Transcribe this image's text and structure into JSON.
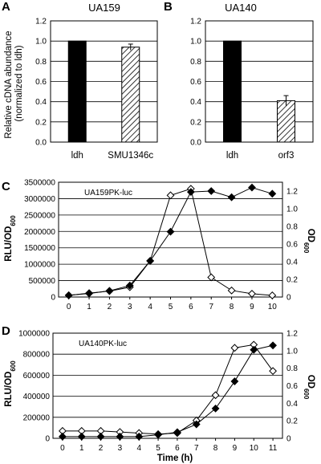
{
  "figure": {
    "panel_A": {
      "letter": "A",
      "title": "UA159"
    },
    "panel_B": {
      "letter": "B",
      "title": "UA140"
    },
    "panel_C": {
      "letter": "C",
      "title": "UA159PK-luc"
    },
    "panel_D": {
      "letter": "D",
      "title": "UA140PK-luc"
    },
    "ylabel_ab_line1": "Relative cDNA abundance",
    "ylabel_ab_line2": "(normalized to ldh)",
    "ylabel_cd_left": "RLU/OD",
    "ylabel_cd_left_sub": "600",
    "ylabel_cd_right": "OD",
    "ylabel_cd_right_sub": "600",
    "xlabel_d": "Time (h)"
  },
  "chart_data": [
    {
      "panel": "A",
      "type": "bar",
      "title": "UA159",
      "categories": [
        "ldh",
        "SMU1346c"
      ],
      "values": [
        1.0,
        0.94
      ],
      "errors": [
        0,
        0.03
      ],
      "fills": [
        "solid",
        "hatched"
      ],
      "ylabel": "Relative cDNA abundance (normalized to ldh)",
      "ylim": [
        0,
        1.2
      ],
      "yticks": [
        "0.0",
        "0.2",
        "0.4",
        "0.6",
        "0.8",
        "1.0",
        "1.2"
      ]
    },
    {
      "panel": "B",
      "type": "bar",
      "title": "UA140",
      "categories": [
        "ldh",
        "orf3"
      ],
      "values": [
        1.0,
        0.41
      ],
      "errors": [
        0,
        0.05
      ],
      "fills": [
        "solid",
        "hatched"
      ],
      "ylim": [
        0,
        1.2
      ],
      "yticks": [
        "0.0",
        "0.2",
        "0.4",
        "0.6",
        "0.8",
        "1.0",
        "1.2"
      ]
    },
    {
      "panel": "C",
      "type": "line",
      "title": "UA159PK-luc",
      "x": [
        0,
        1,
        2,
        3,
        4,
        5,
        6,
        7,
        8,
        9,
        10
      ],
      "xticks": [
        "0",
        "1",
        "2",
        "3",
        "4",
        "5",
        "6",
        "7",
        "8",
        "9",
        "10"
      ],
      "ylabel": "RLU/OD600",
      "ylim": [
        0,
        3500000
      ],
      "yticks": [
        "0",
        "500000",
        "1000000",
        "1500000",
        "2000000",
        "2500000",
        "3000000",
        "3500000"
      ],
      "y2label": "OD600",
      "y2lim": [
        0,
        1.3
      ],
      "y2ticks": [
        "0",
        "0.2",
        "0.4",
        "0.6",
        "0.8",
        "1.0",
        "1.2"
      ],
      "series": [
        {
          "marker": "open-diamond",
          "axis": "left",
          "values": [
            50000,
            120000,
            180000,
            300000,
            1100000,
            3100000,
            3300000,
            600000,
            200000,
            100000,
            50000
          ]
        },
        {
          "marker": "filled-diamond",
          "axis": "right",
          "values": [
            0.02,
            0.04,
            0.07,
            0.13,
            0.41,
            0.74,
            1.19,
            1.2,
            1.13,
            1.24,
            1.17
          ]
        }
      ],
      "grid": "horizontal"
    },
    {
      "panel": "D",
      "type": "line",
      "title": "UA140PK-luc",
      "x": [
        0,
        1,
        2,
        3,
        4,
        5,
        6,
        7,
        8,
        9,
        10,
        11
      ],
      "xticks": [
        "0",
        "1",
        "2",
        "3",
        "4",
        "5",
        "6",
        "7",
        "8",
        "9",
        "10",
        "11"
      ],
      "xlabel": "Time (h)",
      "ylabel": "RLU/OD600",
      "ylim": [
        0,
        1000000
      ],
      "yticks": [
        "0",
        "200000",
        "400000",
        "600000",
        "800000",
        "1000000"
      ],
      "y2label": "OD600",
      "y2lim": [
        0,
        1.2
      ],
      "y2ticks": [
        "0",
        "0.2",
        "0.4",
        "0.6",
        "0.8",
        "1.0",
        "1.2"
      ],
      "series": [
        {
          "marker": "open-diamond",
          "axis": "left",
          "values": [
            70000,
            70000,
            70000,
            60000,
            50000,
            40000,
            50000,
            170000,
            410000,
            860000,
            890000,
            640000
          ]
        },
        {
          "marker": "filled-diamond",
          "axis": "right",
          "values": [
            0.02,
            0.02,
            0.02,
            0.02,
            0.02,
            0.04,
            0.07,
            0.16,
            0.34,
            0.65,
            1.01,
            1.06
          ]
        }
      ],
      "grid": "horizontal"
    }
  ]
}
